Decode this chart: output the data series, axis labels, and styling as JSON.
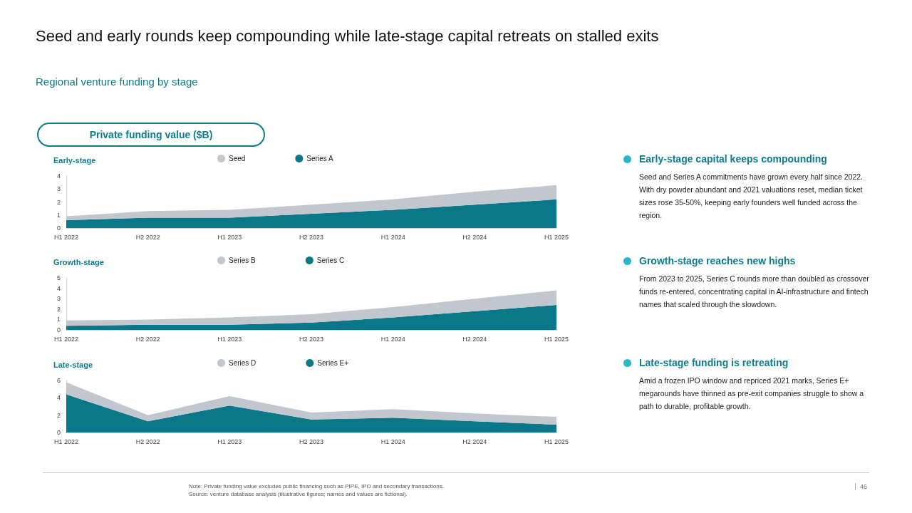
{
  "chart_data": [
    {
      "type": "other",
      "title": "Seed and early rounds keep compounding while late-stage capital retreats on stalled exits",
      "subtitle": "Regional venture funding by stage",
      "annotations": [
        "Private funding value ($B)",
        "Note: Private funding value excludes public financing such as PIPE, IPO and secondary transactions.",
        "Source: venture database analysis (illustrative figures; names and values are fictional).",
        "46"
      ]
    },
    {
      "type": "area",
      "title": "Early-stage",
      "stacked": true,
      "legend": "top",
      "grid": false,
      "categories": [
        "H1 2022",
        "H2 2022",
        "H1 2023",
        "H2 2023",
        "H1 2024",
        "H2 2024",
        "H1 2025"
      ],
      "ylim": [
        0,
        4
      ],
      "yticks": [
        0,
        1,
        2,
        3,
        4
      ],
      "series": [
        {
          "name": "Series A",
          "color": "#0a7889",
          "values": [
            0.6,
            0.8,
            0.8,
            1.1,
            1.4,
            1.8,
            2.2
          ]
        },
        {
          "name": "Seed",
          "color": "#c2c7cf",
          "values": [
            0.3,
            0.5,
            0.6,
            0.7,
            0.8,
            1.0,
            1.1
          ]
        }
      ]
    },
    {
      "type": "area",
      "title": "Growth-stage",
      "stacked": true,
      "legend": "top",
      "grid": false,
      "categories": [
        "H1 2022",
        "H2 2022",
        "H1 2023",
        "H2 2023",
        "H1 2024",
        "H2 2024",
        "H1 2025"
      ],
      "ylim": [
        0,
        5
      ],
      "yticks": [
        0,
        1,
        2,
        3,
        4,
        5
      ],
      "series": [
        {
          "name": "Series C",
          "color": "#0a7889",
          "values": [
            0.4,
            0.5,
            0.5,
            0.7,
            1.2,
            1.8,
            2.4
          ]
        },
        {
          "name": "Series B",
          "color": "#c2c7cf",
          "values": [
            0.5,
            0.5,
            0.7,
            0.8,
            1.0,
            1.2,
            1.4
          ]
        }
      ]
    },
    {
      "type": "area",
      "title": "Late-stage",
      "stacked": true,
      "legend": "top",
      "grid": false,
      "categories": [
        "H1 2022",
        "H2 2022",
        "H1 2023",
        "H2 2023",
        "H1 2024",
        "H2 2024",
        "H1 2025"
      ],
      "ylim": [
        0,
        6
      ],
      "yticks": [
        0,
        2,
        4,
        6
      ],
      "series": [
        {
          "name": "Series E+",
          "color": "#0a7889",
          "values": [
            4.4,
            1.3,
            3.1,
            1.5,
            1.7,
            1.3,
            0.9
          ]
        },
        {
          "name": "Series D",
          "color": "#c2c7cf",
          "values": [
            1.4,
            0.7,
            1.1,
            0.8,
            1.0,
            0.9,
            0.9
          ]
        }
      ]
    },
    {
      "type": "other",
      "annotations": [
        "Early-stage capital keeps compounding",
        "Seed and Series A commitments have grown every half since 2022. With dry powder abundant and 2021 valuations reset, median ticket sizes rose 35-50%, keeping early founders well funded across the region.",
        "Growth-stage reaches new highs",
        "From 2023 to 2025, Series C rounds more than doubled as crossover funds re-entered, concentrating capital in AI-infrastructure and fintech names that scaled through the slowdown.",
        "Late-stage funding is retreating",
        "Amid a frozen IPO window and repriced 2021 marks, Series E+ megarounds have thinned as pre-exit companies struggle to show a path to durable, profitable growth."
      ]
    }
  ]
}
